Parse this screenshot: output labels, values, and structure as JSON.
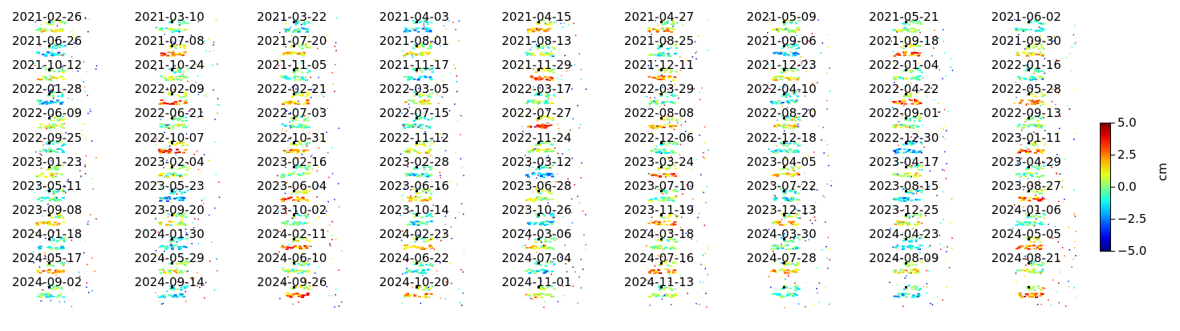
{
  "chart_data": {
    "type": "heatmap",
    "title": "",
    "dates": [
      "2021-02-26",
      "2021-03-10",
      "2021-03-22",
      "2021-04-03",
      "2021-04-15",
      "2021-04-27",
      "2021-05-09",
      "2021-05-21",
      "2021-06-02",
      "2021-06-26",
      "2021-07-08",
      "2021-07-20",
      "2021-08-01",
      "2021-08-13",
      "2021-08-25",
      "2021-09-06",
      "2021-09-18",
      "2021-09-30",
      "2021-10-12",
      "2021-10-24",
      "2021-11-05",
      "2021-11-17",
      "2021-11-29",
      "2021-12-11",
      "2021-12-23",
      "2022-01-04",
      "2022-01-16",
      "2022-01-28",
      "2022-02-09",
      "2022-02-21",
      "2022-03-05",
      "2022-03-17",
      "2022-03-29",
      "2022-04-10",
      "2022-04-22",
      "2022-05-28",
      "2022-06-09",
      "2022-06-21",
      "2022-07-03",
      "2022-07-15",
      "2022-07-27",
      "2022-08-08",
      "2022-08-20",
      "2022-09-01",
      "2022-09-13",
      "2022-09-25",
      "2022-10-07",
      "2022-10-31",
      "2022-11-12",
      "2022-11-24",
      "2022-12-06",
      "2022-12-18",
      "2022-12-30",
      "2023-01-11",
      "2023-01-23",
      "2023-02-04",
      "2023-02-16",
      "2023-02-28",
      "2023-03-12",
      "2023-03-24",
      "2023-04-05",
      "2023-04-17",
      "2023-04-29",
      "2023-05-11",
      "2023-05-23",
      "2023-06-04",
      "2023-06-16",
      "2023-06-28",
      "2023-07-10",
      "2023-07-22",
      "2023-08-15",
      "2023-08-27",
      "2023-09-08",
      "2023-09-20",
      "2023-10-02",
      "2023-10-14",
      "2023-10-26",
      "2023-11-19",
      "2023-12-13",
      "2023-12-25",
      "2024-01-06",
      "2024-01-18",
      "2024-01-30",
      "2024-02-11",
      "2024-02-23",
      "2024-03-06",
      "2024-03-18",
      "2024-03-30",
      "2024-04-23",
      "2024-05-05",
      "2024-05-17",
      "2024-05-29",
      "2024-06-10",
      "2024-06-22",
      "2024-07-04",
      "2024-07-16",
      "2024-07-28",
      "2024-08-09",
      "2024-08-21",
      "2024-09-02",
      "2024-09-14",
      "2024-09-26",
      "2024-10-20",
      "2024-11-01",
      "2024-11-13"
    ],
    "columns": 9,
    "unlabeled_panels": 3,
    "colormap": "jet",
    "colorbar": {
      "label": "cm",
      "vmin": -5.0,
      "vmax": 5.0,
      "ticks": [
        "5.0",
        "2.5",
        "0.0",
        "−2.5",
        "−5.0"
      ],
      "tick_values": [
        5.0,
        2.5,
        0.0,
        -2.5,
        -5.0
      ]
    }
  }
}
